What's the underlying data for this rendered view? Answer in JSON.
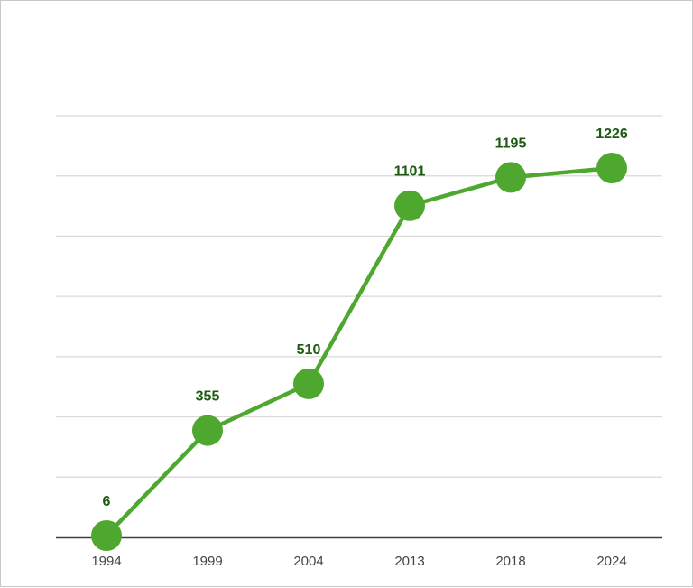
{
  "chart_data": {
    "type": "line",
    "title": "",
    "xlabel": "",
    "ylabel": "",
    "categories": [
      "1994",
      "1999",
      "2004",
      "2013",
      "2018",
      "2024"
    ],
    "series": [
      {
        "values": [
          6,
          355,
          510,
          1101,
          1195,
          1226
        ],
        "color": "#4ea72e"
      }
    ],
    "ylim": [
      0,
      1400
    ],
    "ytick_step": 200,
    "grid": true,
    "legend": "none",
    "colors": {
      "line": "#4ea72e",
      "label": "#1e5a12",
      "gridline": "#d9d9d9",
      "axis": "#404040",
      "tick_text": "#444444"
    }
  }
}
